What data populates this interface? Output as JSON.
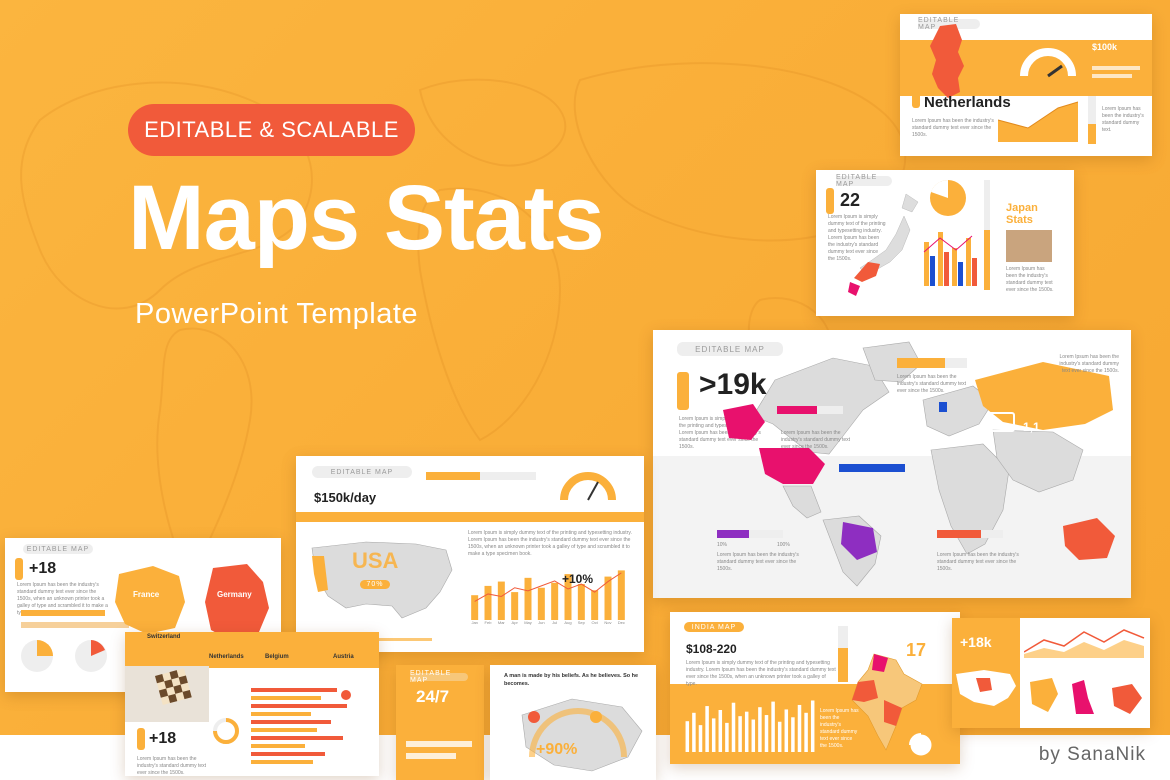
{
  "badge": "EDITABLE & SCALABLE",
  "title": "Maps Stats",
  "subtitle": "PowerPoint Template",
  "credit": "by SanaNik",
  "colors": {
    "orange": "#fbb03b",
    "red": "#f15a3a",
    "magenta": "#e8116d",
    "purple": "#8e2ec1",
    "blue": "#1b4fd1"
  },
  "slides": {
    "netherlands": {
      "country": "Netherlands",
      "value": "$100k"
    },
    "japan": {
      "pill": "EDITABLE MAP",
      "number": "22",
      "title_line1": "Japan",
      "title_line2": "Stats"
    },
    "world": {
      "pill": "EDITABLE MAP",
      "number": ">19k",
      "stat": "1,1",
      "pct_min": "10%",
      "pct_max": "100%",
      "note": "Lorem Ipsum has been the industry's standard dummy text ever since the 1500s."
    },
    "usa": {
      "pill": "EDITABLE MAP",
      "value": "$150k/day",
      "map_label": "USA",
      "chart_label": "+10%",
      "months": [
        "Jan",
        "Feb",
        "Mar",
        "Apr",
        "May",
        "Jun",
        "Jul",
        "Aug",
        "Sep",
        "Oct",
        "Nov",
        "Dec"
      ],
      "bars": [
        40,
        55,
        62,
        45,
        68,
        52,
        60,
        74,
        58,
        48,
        70,
        80
      ],
      "line": [
        30,
        42,
        38,
        52,
        47,
        55,
        63,
        50,
        58,
        45,
        62,
        76
      ]
    },
    "france": {
      "pill": "EDITABLE MAP",
      "number": "+18",
      "label_a": "France",
      "label_b": "Germany"
    },
    "europe": {
      "number": "+18",
      "countries": [
        "Switzerland",
        "Netherlands",
        "Belgium",
        "Austria"
      ]
    },
    "asia": {
      "number": "24/7",
      "pct": "+90%",
      "quote": "A man is made by his beliefs. As he believes. So he becomes."
    },
    "india": {
      "pill": "INDIA MAP",
      "value": "$108-220",
      "number": "17",
      "bars": [
        55,
        70,
        48,
        82,
        60,
        75,
        52,
        88,
        64,
        72,
        58,
        80,
        66,
        90,
        54,
        76,
        62,
        84,
        70,
        92
      ]
    },
    "usa_small": {
      "number": "+18k"
    }
  }
}
